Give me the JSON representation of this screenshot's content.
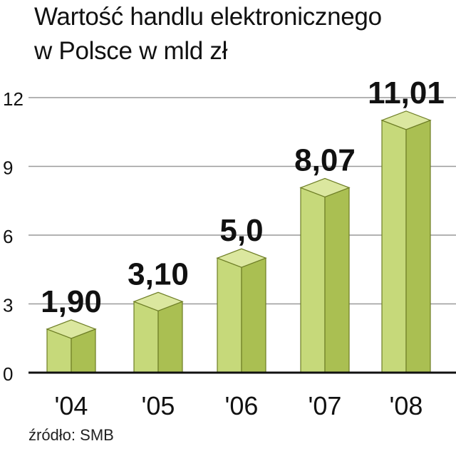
{
  "title_lines": [
    "Wartość handlu elektronicznego",
    "w Polsce w mld zł"
  ],
  "source": "źródło: SMB",
  "colors": {
    "bar_front": "#c6d97a",
    "bar_side": "#aabf52",
    "bar_top": "#dbe79f",
    "bar_edge": "#6d7d25",
    "grid": "#9a9a9a",
    "axis": "#111111",
    "text": "#111111"
  },
  "chart_data": {
    "type": "bar",
    "title": "Wartość handlu elektronicznego w Polsce w mld zł",
    "categories": [
      "'04",
      "'05",
      "'06",
      "'07",
      "'08"
    ],
    "values": [
      1.9,
      3.1,
      5.0,
      8.07,
      11.01
    ],
    "value_labels": [
      "1,90",
      "3,10",
      "5,0",
      "8,07",
      "11,01"
    ],
    "y_ticks": [
      0,
      3,
      6,
      9,
      12
    ],
    "ylim": [
      0,
      12
    ],
    "xlabel": "",
    "ylabel": "",
    "grid": true,
    "legend": "none",
    "style": "3d-bars"
  }
}
